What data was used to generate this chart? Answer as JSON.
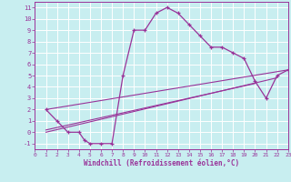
{
  "xlabel": "Windchill (Refroidissement éolien,°C)",
  "xlim": [
    0,
    23
  ],
  "ylim": [
    -1.5,
    11.5
  ],
  "xticks": [
    0,
    1,
    2,
    3,
    4,
    5,
    6,
    7,
    8,
    9,
    10,
    11,
    12,
    13,
    14,
    15,
    16,
    17,
    18,
    19,
    20,
    21,
    22,
    23
  ],
  "yticks": [
    -1,
    0,
    1,
    2,
    3,
    4,
    5,
    6,
    7,
    8,
    9,
    10,
    11
  ],
  "bg_color": "#c8eef0",
  "line_color": "#993399",
  "grid_color": "#ffffff",
  "line1_x": [
    1,
    2,
    3,
    4,
    4.5,
    5,
    6,
    7,
    8,
    9,
    10,
    11,
    12,
    13,
    14,
    15,
    16,
    17,
    18,
    19,
    20,
    21,
    22,
    23
  ],
  "line1_y": [
    2,
    1,
    0,
    0,
    -0.7,
    -1,
    -1,
    -1,
    5,
    9,
    9,
    10.5,
    11,
    10.5,
    9.5,
    8.5,
    7.5,
    7.5,
    7,
    6.5,
    4.5,
    3,
    5,
    5.5
  ],
  "line2_x": [
    1,
    23
  ],
  "line2_y": [
    2,
    5.5
  ],
  "line3_x": [
    1,
    20
  ],
  "line3_y": [
    0.2,
    4.3
  ],
  "line4_x": [
    1,
    22
  ],
  "line4_y": [
    0.0,
    4.8
  ]
}
